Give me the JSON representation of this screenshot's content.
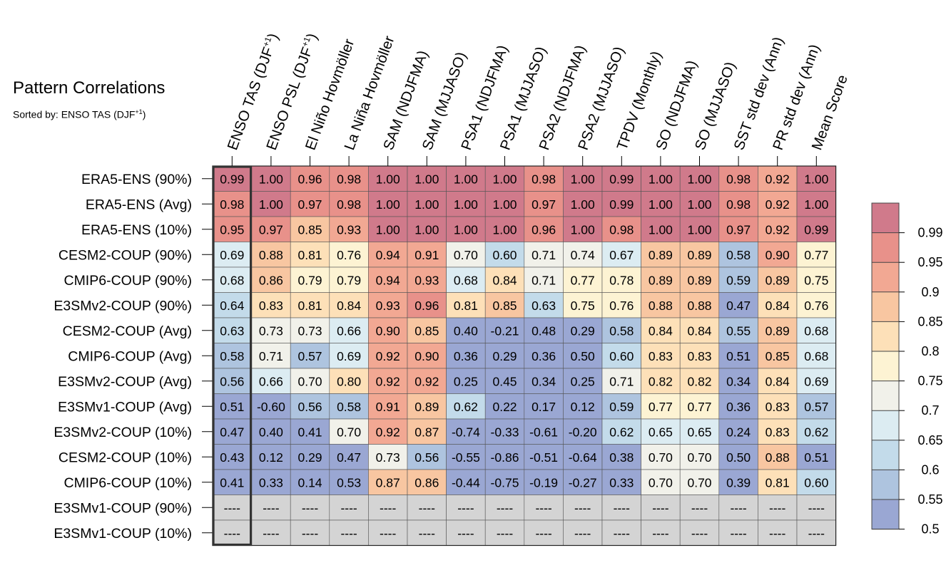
{
  "title": "Pattern Correlations",
  "subtitle": "Sorted by: ENSO TAS (DJF",
  "subtitle_sup": "+1",
  "subtitle_close": ")",
  "chart_data": {
    "type": "heatmap",
    "columns": [
      {
        "text": "ENSO TAS (DJF",
        "sup": "+1",
        "close": ")"
      },
      {
        "text": "ENSO PSL (DJF",
        "sup": "+1",
        "close": ")"
      },
      {
        "text": "El Niño Hovmöller"
      },
      {
        "text": "La Niña Hovmöller"
      },
      {
        "text": "SAM (NDJFMA)"
      },
      {
        "text": "SAM (MJJASO)"
      },
      {
        "text": "PSA1 (NDJFMA)"
      },
      {
        "text": "PSA1 (MJJASO)"
      },
      {
        "text": "PSA2 (NDJFMA)"
      },
      {
        "text": "PSA2 (MJJASO)"
      },
      {
        "text": "TPDV (Monthly)"
      },
      {
        "text": "SO (NDJFMA)"
      },
      {
        "text": "SO (MJJASO)"
      },
      {
        "text": "SST std dev (Ann)"
      },
      {
        "text": "PR std dev (Ann)"
      },
      {
        "text": "Mean Score"
      }
    ],
    "rows": [
      {
        "name": "ERA5-ENS (90%)",
        "values": [
          "0.99",
          "1.00",
          "0.96",
          "0.98",
          "1.00",
          "1.00",
          "1.00",
          "1.00",
          "0.98",
          "1.00",
          "0.99",
          "1.00",
          "1.00",
          "0.98",
          "0.92",
          "1.00"
        ]
      },
      {
        "name": "ERA5-ENS (Avg)",
        "values": [
          "0.98",
          "1.00",
          "0.97",
          "0.98",
          "1.00",
          "1.00",
          "1.00",
          "1.00",
          "0.97",
          "1.00",
          "0.99",
          "1.00",
          "1.00",
          "0.98",
          "0.92",
          "1.00"
        ]
      },
      {
        "name": "ERA5-ENS (10%)",
        "values": [
          "0.95",
          "0.97",
          "0.85",
          "0.93",
          "1.00",
          "1.00",
          "1.00",
          "1.00",
          "0.96",
          "1.00",
          "0.98",
          "1.00",
          "1.00",
          "0.97",
          "0.92",
          "0.99"
        ]
      },
      {
        "name": "CESM2-COUP (90%)",
        "values": [
          "0.69",
          "0.88",
          "0.81",
          "0.76",
          "0.94",
          "0.91",
          "0.70",
          "0.60",
          "0.71",
          "0.74",
          "0.67",
          "0.89",
          "0.89",
          "0.58",
          "0.90",
          "0.77"
        ]
      },
      {
        "name": "CMIP6-COUP (90%)",
        "values": [
          "0.68",
          "0.86",
          "0.79",
          "0.79",
          "0.94",
          "0.93",
          "0.68",
          "0.84",
          "0.71",
          "0.77",
          "0.78",
          "0.89",
          "0.89",
          "0.59",
          "0.89",
          "0.75"
        ]
      },
      {
        "name": "E3SMv2-COUP (90%)",
        "values": [
          "0.64",
          "0.83",
          "0.81",
          "0.84",
          "0.93",
          "0.96",
          "0.81",
          "0.85",
          "0.63",
          "0.75",
          "0.76",
          "0.88",
          "0.88",
          "0.47",
          "0.84",
          "0.76"
        ]
      },
      {
        "name": "CESM2-COUP (Avg)",
        "values": [
          "0.63",
          "0.73",
          "0.73",
          "0.66",
          "0.90",
          "0.85",
          "0.40",
          "-0.21",
          "0.48",
          "0.29",
          "0.58",
          "0.84",
          "0.84",
          "0.55",
          "0.89",
          "0.68"
        ]
      },
      {
        "name": "CMIP6-COUP (Avg)",
        "values": [
          "0.58",
          "0.71",
          "0.57",
          "0.69",
          "0.92",
          "0.90",
          "0.36",
          "0.29",
          "0.36",
          "0.50",
          "0.60",
          "0.83",
          "0.83",
          "0.51",
          "0.85",
          "0.68"
        ]
      },
      {
        "name": "E3SMv2-COUP (Avg)",
        "values": [
          "0.56",
          "0.66",
          "0.70",
          "0.80",
          "0.92",
          "0.92",
          "0.25",
          "0.45",
          "0.34",
          "0.25",
          "0.71",
          "0.82",
          "0.82",
          "0.34",
          "0.84",
          "0.69"
        ]
      },
      {
        "name": "E3SMv1-COUP (Avg)",
        "values": [
          "0.51",
          "-0.60",
          "0.56",
          "0.58",
          "0.91",
          "0.89",
          "0.62",
          "0.22",
          "0.17",
          "0.12",
          "0.59",
          "0.77",
          "0.77",
          "0.36",
          "0.83",
          "0.57"
        ]
      },
      {
        "name": "E3SMv2-COUP (10%)",
        "values": [
          "0.47",
          "0.40",
          "0.41",
          "0.70",
          "0.92",
          "0.87",
          "-0.74",
          "-0.33",
          "-0.61",
          "-0.20",
          "0.62",
          "0.65",
          "0.65",
          "0.24",
          "0.83",
          "0.62"
        ]
      },
      {
        "name": "CESM2-COUP (10%)",
        "values": [
          "0.43",
          "0.12",
          "0.29",
          "0.47",
          "0.73",
          "0.56",
          "-0.55",
          "-0.86",
          "-0.51",
          "-0.64",
          "0.38",
          "0.70",
          "0.70",
          "0.50",
          "0.88",
          "0.51"
        ]
      },
      {
        "name": "CMIP6-COUP (10%)",
        "values": [
          "0.41",
          "0.33",
          "0.14",
          "0.53",
          "0.87",
          "0.86",
          "-0.44",
          "-0.75",
          "-0.19",
          "-0.27",
          "0.33",
          "0.70",
          "0.70",
          "0.39",
          "0.81",
          "0.60"
        ]
      },
      {
        "name": "E3SMv1-COUP (90%)",
        "values": [
          "----",
          "----",
          "----",
          "----",
          "----",
          "----",
          "----",
          "----",
          "----",
          "----",
          "----",
          "----",
          "----",
          "----",
          "----",
          "----"
        ]
      },
      {
        "name": "E3SMv1-COUP (10%)",
        "values": [
          "----",
          "----",
          "----",
          "----",
          "----",
          "----",
          "----",
          "----",
          "----",
          "----",
          "----",
          "----",
          "----",
          "----",
          "----",
          "----"
        ]
      }
    ],
    "highlighted_column": "ENSO TAS (DJF+1)",
    "missing_label": "----",
    "missing_color": "#d4d4d4",
    "colorbar": {
      "ticks": [
        "0.99",
        "0.95",
        "0.9",
        "0.85",
        "0.8",
        "0.75",
        "0.7",
        "0.65",
        "0.6",
        "0.55",
        "0.5"
      ],
      "colors": [
        "#d07a8b",
        "#e8918a",
        "#f2a893",
        "#f8c6a1",
        "#fde0b8",
        "#fdf3d3",
        "#f1f1ea",
        "#dcecf2",
        "#c3dbea",
        "#aec4df",
        "#9aa7d3"
      ]
    }
  }
}
